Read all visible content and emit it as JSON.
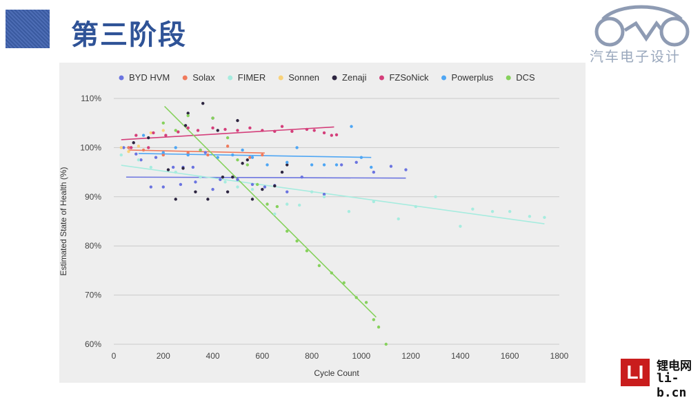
{
  "slide": {
    "title": "第三阶段",
    "brand_text": "汽车电子设计",
    "corner_logo_cn": "锂电网",
    "corner_logo_en": "li-b.cn",
    "corner_logo_box": "LI"
  },
  "chart_data": {
    "type": "scatter",
    "title": "",
    "xlabel": "Cycle Count",
    "ylabel": "Estimated State of Health (%)",
    "xlim": [
      0,
      1800
    ],
    "ylim": [
      60,
      110
    ],
    "x_ticks": [
      0,
      200,
      400,
      600,
      800,
      1000,
      1200,
      1400,
      1600,
      1800
    ],
    "y_ticks": [
      60,
      70,
      80,
      90,
      100,
      110
    ],
    "y_tick_suffix": "%",
    "grid": "horizontal",
    "legend_position": "top",
    "series": [
      {
        "name": "BYD HVM",
        "color": "#6b74e0",
        "points": [
          [
            40,
            100
          ],
          [
            60,
            100
          ],
          [
            70,
            100
          ],
          [
            90,
            98.7
          ],
          [
            110,
            97.5
          ],
          [
            150,
            92
          ],
          [
            170,
            98
          ],
          [
            200,
            92
          ],
          [
            240,
            96
          ],
          [
            270,
            92.5
          ],
          [
            280,
            96
          ],
          [
            320,
            96
          ],
          [
            330,
            93
          ],
          [
            370,
            99
          ],
          [
            400,
            91.5
          ],
          [
            430,
            93.5
          ],
          [
            500,
            93.5
          ],
          [
            560,
            92.5
          ],
          [
            610,
            92
          ],
          [
            650,
            92.3
          ],
          [
            700,
            91
          ],
          [
            760,
            94
          ],
          [
            850,
            90.5
          ],
          [
            920,
            96.5
          ],
          [
            980,
            97
          ],
          [
            1050,
            95
          ],
          [
            1120,
            96.2
          ],
          [
            1180,
            95.5
          ]
        ],
        "trend": [
          [
            50,
            94
          ],
          [
            1180,
            93.8
          ]
        ]
      },
      {
        "name": "Solax",
        "color": "#f07a5c",
        "points": [
          [
            60,
            100
          ],
          [
            120,
            99.5
          ],
          [
            200,
            98.5
          ],
          [
            300,
            98.9
          ],
          [
            380,
            98.5
          ],
          [
            460,
            100.3
          ],
          [
            550,
            98
          ],
          [
            600,
            98.5
          ]
        ],
        "trend": [
          [
            60,
            99.5
          ],
          [
            610,
            98.9
          ]
        ]
      },
      {
        "name": "FIMER",
        "color": "#a6ecdf",
        "points": [
          [
            30,
            98.5
          ],
          [
            100,
            97.5
          ],
          [
            150,
            96
          ],
          [
            250,
            95
          ],
          [
            350,
            94
          ],
          [
            450,
            93
          ],
          [
            500,
            92
          ],
          [
            560,
            91.5
          ],
          [
            650,
            86.5
          ],
          [
            700,
            88.5
          ],
          [
            750,
            88.3
          ],
          [
            800,
            91
          ],
          [
            850,
            90
          ],
          [
            950,
            87
          ],
          [
            1050,
            89
          ],
          [
            1150,
            85.5
          ],
          [
            1220,
            88
          ],
          [
            1300,
            90
          ],
          [
            1400,
            84
          ],
          [
            1450,
            87.5
          ],
          [
            1530,
            87
          ],
          [
            1600,
            87
          ],
          [
            1680,
            86
          ],
          [
            1740,
            85.8
          ]
        ],
        "trend": [
          [
            30,
            96.4
          ],
          [
            1740,
            84.5
          ]
        ]
      },
      {
        "name": "Sonnen",
        "color": "#f9d27a",
        "points": [
          [
            30,
            100
          ],
          [
            60,
            99.2
          ],
          [
            100,
            100.3
          ],
          [
            150,
            103
          ],
          [
            200,
            103.5
          ],
          [
            260,
            103.2
          ]
        ]
      },
      {
        "name": "Zenaji",
        "color": "#2d2540",
        "points": [
          [
            80,
            101
          ],
          [
            140,
            102
          ],
          [
            220,
            95.5
          ],
          [
            250,
            89.5
          ],
          [
            280,
            95.8
          ],
          [
            290,
            104.5
          ],
          [
            300,
            107
          ],
          [
            330,
            91
          ],
          [
            360,
            109
          ],
          [
            380,
            89.5
          ],
          [
            400,
            106
          ],
          [
            420,
            103.5
          ],
          [
            440,
            94
          ],
          [
            460,
            91
          ],
          [
            480,
            94
          ],
          [
            500,
            105.5
          ],
          [
            520,
            96.8
          ],
          [
            540,
            97.5
          ],
          [
            560,
            89.5
          ],
          [
            600,
            91.5
          ],
          [
            650,
            92.2
          ],
          [
            680,
            95
          ],
          [
            700,
            96.5
          ]
        ]
      },
      {
        "name": "FZSoNick",
        "color": "#d43e7a",
        "points": [
          [
            70,
            100
          ],
          [
            90,
            102.5
          ],
          [
            140,
            100
          ],
          [
            160,
            103
          ],
          [
            210,
            102.5
          ],
          [
            260,
            103.2
          ],
          [
            300,
            104
          ],
          [
            340,
            103.5
          ],
          [
            400,
            104
          ],
          [
            450,
            103.7
          ],
          [
            500,
            103.5
          ],
          [
            550,
            104
          ],
          [
            600,
            103.5
          ],
          [
            650,
            103.3
          ],
          [
            680,
            104.3
          ],
          [
            720,
            103.3
          ],
          [
            780,
            103.7
          ],
          [
            810,
            103.5
          ],
          [
            850,
            103
          ],
          [
            880,
            102.5
          ],
          [
            900,
            102.6
          ]
        ],
        "trend": [
          [
            30,
            101.6
          ],
          [
            890,
            104.2
          ]
        ]
      },
      {
        "name": "Powerplus",
        "color": "#4ea6f4",
        "points": [
          [
            120,
            102.5
          ],
          [
            200,
            99
          ],
          [
            250,
            100
          ],
          [
            300,
            98.5
          ],
          [
            350,
            99.5
          ],
          [
            420,
            98
          ],
          [
            480,
            98.5
          ],
          [
            520,
            99.5
          ],
          [
            560,
            98
          ],
          [
            620,
            96.5
          ],
          [
            700,
            97
          ],
          [
            740,
            100
          ],
          [
            800,
            96.5
          ],
          [
            850,
            96.5
          ],
          [
            900,
            96.5
          ],
          [
            960,
            104.3
          ],
          [
            1000,
            98
          ],
          [
            1040,
            96
          ]
        ],
        "trend": [
          [
            100,
            98.8
          ],
          [
            1040,
            98
          ]
        ]
      },
      {
        "name": "DCS",
        "color": "#86d15c",
        "points": [
          [
            200,
            105
          ],
          [
            250,
            103.5
          ],
          [
            300,
            106.5
          ],
          [
            350,
            99.5
          ],
          [
            400,
            106
          ],
          [
            460,
            102
          ],
          [
            500,
            97.5
          ],
          [
            540,
            96.5
          ],
          [
            580,
            92.5
          ],
          [
            620,
            88.5
          ],
          [
            660,
            88
          ],
          [
            700,
            83
          ],
          [
            740,
            81
          ],
          [
            780,
            79
          ],
          [
            830,
            76
          ],
          [
            880,
            74.5
          ],
          [
            930,
            72.5
          ],
          [
            980,
            69.5
          ],
          [
            1020,
            68.5
          ],
          [
            1050,
            65
          ],
          [
            1070,
            63.5
          ],
          [
            1100,
            60
          ]
        ],
        "trend": [
          [
            205,
            108.4
          ],
          [
            1060,
            65.5
          ]
        ]
      }
    ]
  }
}
